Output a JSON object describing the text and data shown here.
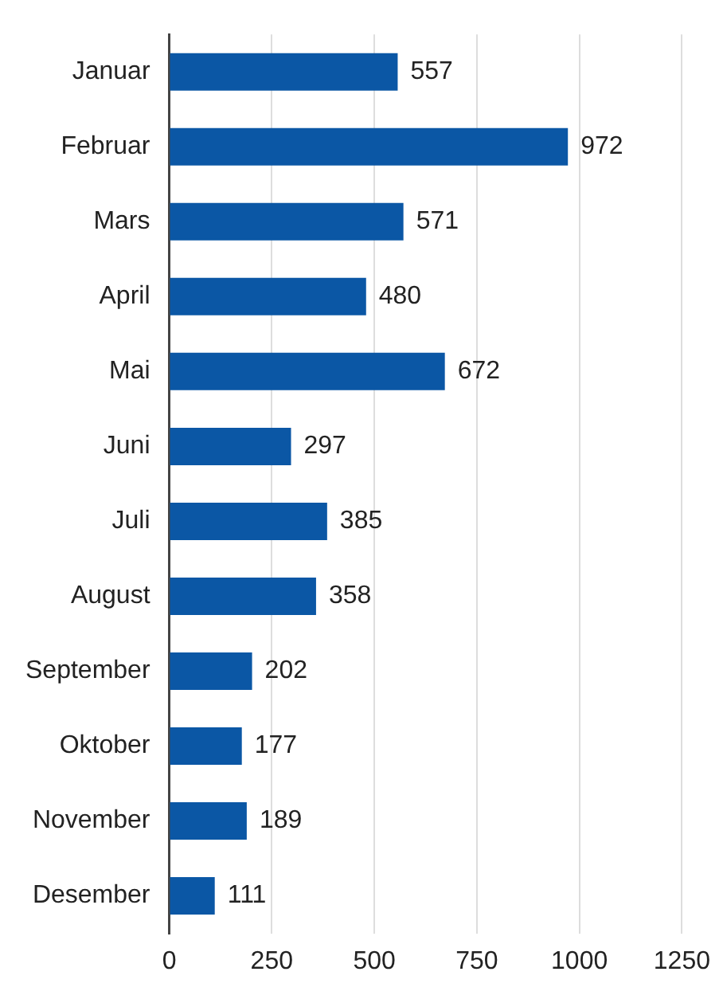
{
  "chart_data": {
    "type": "bar",
    "orientation": "horizontal",
    "categories": [
      "Januar",
      "Februar",
      "Mars",
      "April",
      "Mai",
      "Juni",
      "Juli",
      "August",
      "September",
      "Oktober",
      "November",
      "Desember"
    ],
    "values": [
      557,
      972,
      571,
      480,
      672,
      297,
      385,
      358,
      202,
      177,
      189,
      111
    ],
    "color": "#0b57a5",
    "xlim": [
      0,
      1250
    ],
    "xticks": [
      0,
      250,
      500,
      750,
      1000,
      1250
    ],
    "grid": "x",
    "data_labels": true
  }
}
